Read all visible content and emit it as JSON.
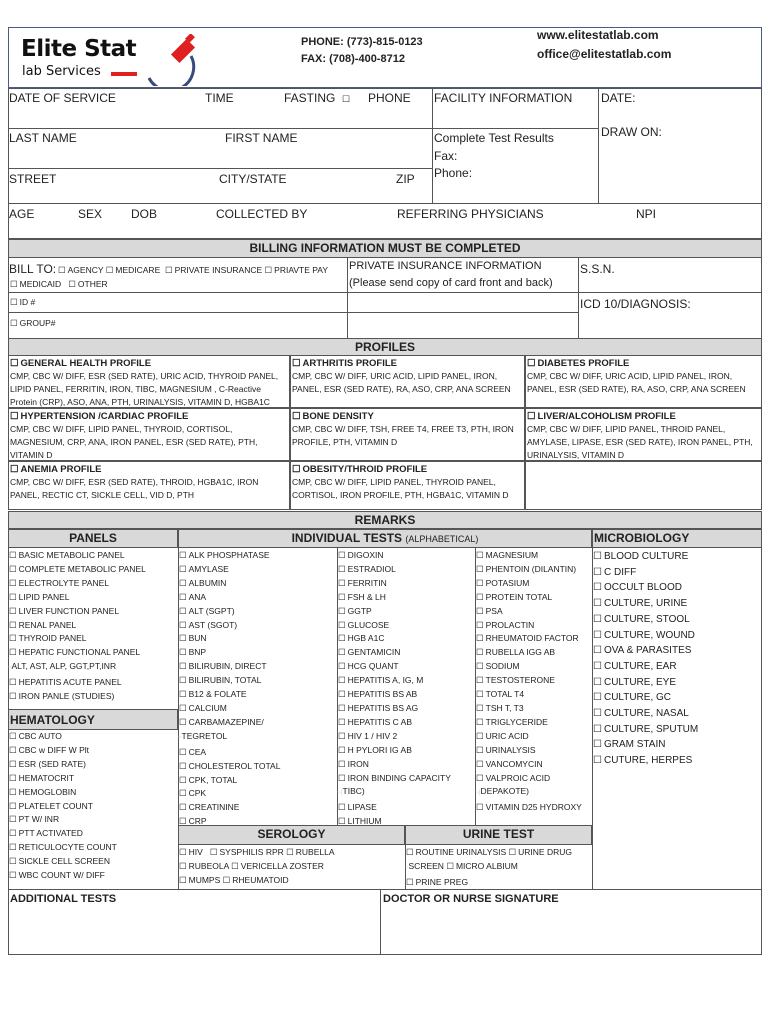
{
  "header": {
    "logo_line1": "Elite Stat",
    "logo_line2": "lab Services",
    "phone": "PHONE: (773)-815-0123",
    "fax": "FAX: (708)-400-8712",
    "website": "www.elitestatlab.com",
    "email": "office@elitestatlab.com",
    "brand_red": "#e02020",
    "brand_blue": "#3a4a7a"
  },
  "patient": {
    "date_of_service": "DATE OF SERVICE",
    "time": "TIME",
    "fasting": "FASTING",
    "phone": "PHONE",
    "last_name": "LAST NAME",
    "first_name": "FIRST NAME",
    "street": "STREET",
    "city_state": "CITY/STATE",
    "zip": "ZIP",
    "age": "AGE",
    "sex": "SEX",
    "dob": "DOB",
    "collected_by": "COLLECTED BY",
    "referring": "REFERRING PHYSICIANS",
    "npi": "NPI",
    "facility": "FACILITY INFORMATION",
    "complete_results": "Complete Test Results",
    "fax": "Fax:",
    "phone2": "Phone:",
    "date": "DATE:",
    "draw_on": "DRAW ON:"
  },
  "billing": {
    "title": "BILLING INFORMATION MUST BE COMPLETED",
    "bill_to": "BILL TO:",
    "options": [
      "AGENCY",
      "MEDICARE",
      "PRIVATE INSURANCE",
      "PRIAVTE PAY",
      "MEDICAID",
      "OTHER"
    ],
    "id": "ID #",
    "group": "GROUP#",
    "private_ins": "PRIVATE INSURANCE INFORMATION",
    "private_ins_note": "(Please send copy of card front and back)",
    "ssn": "S.S.N.",
    "icd": "ICD 10/DIAGNOSIS:"
  },
  "profiles": {
    "title": "PROFILES",
    "items": [
      {
        "name": "GENERAL HEALTH PROFILE",
        "tests": "CMP, CBC W/ DIFF, ESR (SED RATE), URIC ACID, THYROID PANEL, LIPID PANEL, FERRITIN, IRON, TIBC, MAGNESIUM , C-Reactive Protein (CRP), ASO, ANA, PTH, URINALYSIS, VITAMIN D, HGBA1C"
      },
      {
        "name": "ARTHRITIS PROFILE",
        "tests": "CMP, CBC W/ DIFF, URIC ACID, LIPID PANEL, IRON, PANEL, ESR (SED RATE), RA, ASO, CRP, ANA SCREEN"
      },
      {
        "name": "DIABETES PROFILE",
        "tests": "CMP, CBC W/ DIFF, URIC ACID, LIPID PANEL, IRON, PANEL, ESR (SED RATE), RA, ASO, CRP, ANA SCREEN"
      },
      {
        "name": "HYPERTENSION /CARDIAC PROFILE",
        "tests": "CMP, CBC W/ DIFF, LIPID PANEL, THYROID, CORTISOL, MAGNESIUM, CRP, ANA, IRON PANEL, ESR (SED RATE), PTH, VITAMIN D"
      },
      {
        "name": "BONE DENSITY",
        "tests": "CMP, CBC W/ DIFF, TSH, FREE T4, FREE T3, PTH, IRON PROFILE, PTH, VITAMIN D"
      },
      {
        "name": "LIVER/ALCOHOLISM PROFILE",
        "tests": "CMP, CBC W/ DIFF, LIPID PANEL, THROID PANEL, AMYLASE, LIPASE, ESR (SED RATE), IRON PANEL, PTH, URINALYSIS, VITAMIN D"
      },
      {
        "name": "ANEMIA PROFILE",
        "tests": "CMP, CBC W/ DIFF, ESR (SED RATE), THROID, HGBA1C, IRON PANEL, RECTIC CT, SICKLE CELL, VID D, PTH"
      },
      {
        "name": "OBESITY/THROID PROFILE",
        "tests": "CMP, CBC W/ DIFF, LIPID PANEL, THYROID PANEL, CORTISOL, IRON PROFILE, PTH, HGBA1C, VITAMIN D"
      }
    ]
  },
  "remarks": "REMARKS",
  "panels": {
    "title": "PANELS",
    "items": [
      "BASIC METABOLIC PANEL",
      "COMPLETE METABOLIC PANEL",
      "ELECTROLYTE PANEL",
      "LIPID PANEL",
      "LIVER FUNCTION PANEL",
      "RENAL PANEL",
      "THYROID PANEL",
      "HEPATIC FUNCTIONAL PANEL",
      "~ALT, AST, ALP, GGT,PT,INR",
      "HEPATITIS ACUTE PANEL",
      "IRON PANLE (STUDIES)"
    ]
  },
  "hematology": {
    "title": "HEMATOLOGY",
    "items": [
      "CBC AUTO",
      "CBC w DIFF W Plt",
      "ESR (SED RATE)",
      "HEMATOCRIT",
      "HEMOGLOBIN",
      "PLATELET COUNT",
      "PT W/ INR",
      "PTT ACTIVATED",
      "RETICULOCYTE COUNT",
      "SICKLE CELL SCREEN",
      "WBC COUNT W/ DIFF"
    ]
  },
  "individual": {
    "title": "INDIVIDUAL TESTS",
    "subtitle": "(ALPHABETICAL)",
    "col1": [
      "ALK PHOSPHATASE",
      "AMYLASE",
      "ALBUMIN",
      "ANA",
      "ALT (SGPT)",
      "AST (SGOT)",
      "BUN",
      "BNP",
      "BILIRUBIN, DIRECT",
      "BILIRUBIN, TOTAL",
      "B12 & FOLATE",
      "CALCIUM",
      "CARBAMAZEPINE/",
      "~TEGRETOL",
      "CEA",
      "CHOLESTEROL TOTAL",
      "CPK, TOTAL",
      "CPK",
      "CREATININE",
      "CRP"
    ],
    "col2": [
      "DIGOXIN",
      "ESTRADIOL",
      "FERRITIN",
      "FSH & LH",
      "GGTP",
      "GLUCOSE",
      "HGB A1C",
      "GENTAMICIN",
      "HCG QUANT",
      "HEPATITIS A, IG, M",
      "HEPATITIS BS AB",
      "HEPATITIS BS AG",
      "HEPATITIS C AB",
      "HIV 1 / HIV 2",
      "H PYLORI IG AB",
      "IRON",
      "IRON BINDING CAPACITY",
      "~(TIBC)",
      "LIPASE",
      "LITHIUM"
    ],
    "col3": [
      "MAGNESIUM",
      "PHENTOIN (DILANTIN)",
      "POTASIUM",
      "PROTEIN TOTAL",
      "PSA",
      "PROLACTIN",
      "RHEUMATOID FACTOR",
      "RUBELLA IGG AB",
      "SODIUM",
      "TESTOSTERONE",
      "TOTAL T4",
      "TSH T, T3",
      "TRIGLYCERIDE",
      "URIC ACID",
      "URINALYSIS",
      "VANCOMYCIN",
      "VALPROIC ACID",
      "~(DEPAKOTE)",
      "VITAMIN D25 HYDROXY"
    ]
  },
  "microbiology": {
    "title": "MICROBIOLOGY",
    "items": [
      "BLOOD CULTURE",
      "C DIFF",
      "OCCULT BLOOD",
      "CULTURE, URINE",
      "CULTURE, STOOL",
      "CULTURE, WOUND",
      "OVA & PARASITES",
      "CULTURE, EAR",
      "CULTURE, EYE",
      "CULTURE, GC",
      "CULTURE, NASAL",
      "CULTURE, SPUTUM",
      "GRAM STAIN",
      "CUTURE, HERPES"
    ]
  },
  "serology": {
    "title": "SEROLOGY",
    "items": [
      "HIV",
      "SYSPHILIS RPR",
      "RUBELLA",
      "RUBEOLA",
      "VERICELLA ZOSTER",
      "MUMPS",
      "RHEUMATOID"
    ]
  },
  "urine": {
    "title": "URINE TEST",
    "items": [
      "ROUTINE URINALYSIS",
      "URINE DRUG",
      "~SCREEN",
      "MICRO ALBIUM",
      "PRINE PREG"
    ]
  },
  "footer": {
    "additional": "ADDITIONAL TESTS",
    "signature": "DOCTOR OR NURSE SIGNATURE"
  }
}
